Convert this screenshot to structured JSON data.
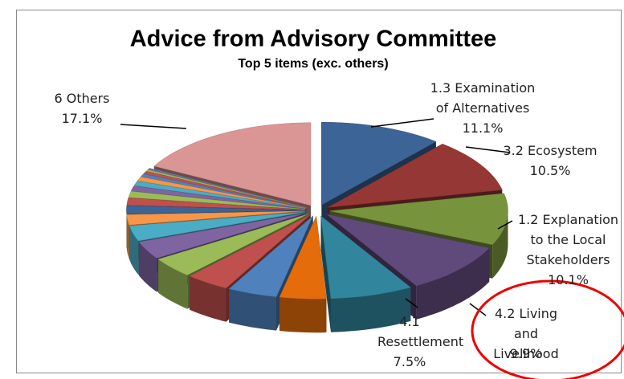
{
  "chart_data": {
    "type": "pie3d",
    "title": "Advice from Advisory Committee",
    "subtitle": "Top 5 items (exc. others)",
    "categories": [
      "1.3 Examination of Alternatives",
      "3.2 Ecosystem",
      "1.2 Explanation to the Local Stakeholders",
      "4.2 Living and Livelihood",
      "4.1 Resettlement",
      null,
      null,
      null,
      null,
      null,
      null,
      null,
      null,
      null,
      null,
      null,
      null,
      null,
      null,
      null,
      null,
      null,
      null,
      "6 Others"
    ],
    "values": [
      11.1,
      10.5,
      10.1,
      9.9,
      7.5,
      4.2,
      4.5,
      4.0,
      4.0,
      3.5,
      3.0,
      2.0,
      1.6,
      1.4,
      1.2,
      1.0,
      0.9,
      0.8,
      0.6,
      0.5,
      0.3,
      0.2,
      0.1,
      17.1
    ],
    "value_labels": [
      "11.1%",
      "10.5%",
      "10.1%",
      "9.9%",
      "7.5%",
      null,
      null,
      null,
      null,
      null,
      null,
      null,
      null,
      null,
      null,
      null,
      null,
      null,
      null,
      null,
      null,
      null,
      null,
      "17.1%"
    ],
    "colors": [
      "#3c6496",
      "#953735",
      "#77933c",
      "#604a7b",
      "#31859c",
      "#e46c0a",
      "#4f81bd",
      "#c0504d",
      "#9bbb59",
      "#8064a2",
      "#4bacc6",
      "#f79646",
      "#3c6496",
      "#c0504d",
      "#9bbb59",
      "#8064a2",
      "#4bacc6",
      "#f79646",
      "#4f81bd",
      "#c0504d",
      "#9bbb59",
      "#8064a2",
      "#4bacc6",
      "#d99694"
    ]
  }
}
